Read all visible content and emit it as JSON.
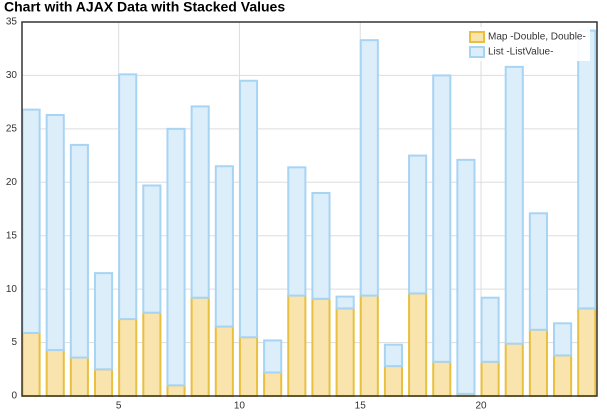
{
  "chart_data": {
    "type": "stacked-bar",
    "title": "Chart with AJAX Data with Stacked Values",
    "x": [
      1,
      2,
      3,
      4,
      5,
      6,
      7,
      8,
      9,
      10,
      11,
      12,
      13,
      14,
      15,
      16,
      17,
      18,
      19,
      20,
      21,
      22,
      23,
      24
    ],
    "series": [
      {
        "name": "Map -Double, Double-",
        "color": "#e8c040",
        "fill": "#f8e4ac",
        "values": [
          5.9,
          4.3,
          3.6,
          2.5,
          7.2,
          7.8,
          1.0,
          9.2,
          6.5,
          5.5,
          2.2,
          9.4,
          9.1,
          8.2,
          9.4,
          2.8,
          9.6,
          3.2,
          0.2,
          3.2,
          4.9,
          6.2,
          3.8,
          8.2
        ]
      },
      {
        "name": "List -ListValue-",
        "color": "#a8d4f4",
        "fill": "#ddeefb",
        "values": [
          20.9,
          22.0,
          19.9,
          9.0,
          22.9,
          11.9,
          24.0,
          17.9,
          15.0,
          24.0,
          3.0,
          12.0,
          9.9,
          1.1,
          23.9,
          2.0,
          12.9,
          26.8,
          21.9,
          6.0,
          25.9,
          10.9,
          3.0,
          26.0
        ]
      }
    ],
    "xlim": [
      1,
      24.8
    ],
    "xticks": [
      5,
      10,
      15,
      20
    ],
    "ylim": [
      0,
      35
    ],
    "yticks": [
      0,
      5,
      10,
      15,
      20,
      25,
      30,
      35
    ],
    "grid": true,
    "legend": "top-right"
  }
}
